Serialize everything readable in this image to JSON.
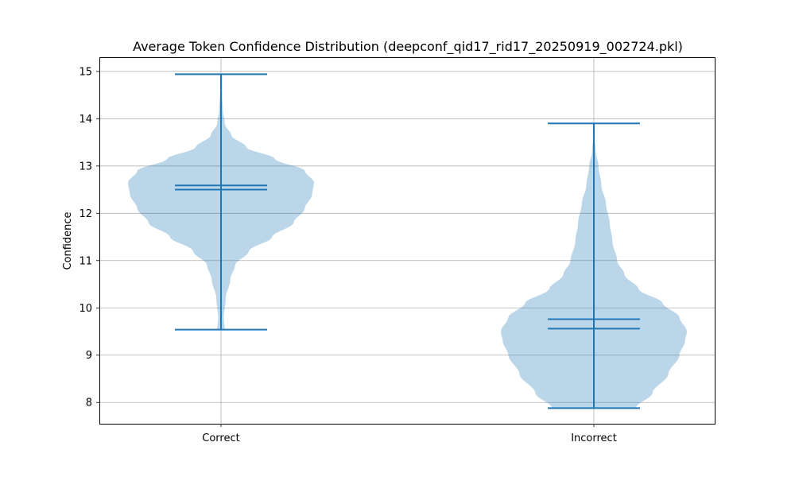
{
  "chart_data": {
    "type": "violin",
    "title": "Average Token Confidence Distribution (deepconf_qid17_rid17_20250919_002724.pkl)",
    "xlabel": "",
    "ylabel": "Confidence",
    "categories": [
      "Correct",
      "Incorrect"
    ],
    "ylim": [
      7.55,
      15.3
    ],
    "yticks": [
      8,
      9,
      10,
      11,
      12,
      13,
      14,
      15
    ],
    "grid": true,
    "colors": {
      "body": "#1f77b4",
      "body_alpha": 0.3,
      "lines": "#1f77b4"
    },
    "series": [
      {
        "category": "Correct",
        "min": 9.54,
        "max": 14.94,
        "mean": 12.59,
        "median": 12.5,
        "density_profile": [
          [
            9.54,
            0.04
          ],
          [
            9.8,
            0.03
          ],
          [
            10.2,
            0.05
          ],
          [
            10.6,
            0.1
          ],
          [
            10.9,
            0.15
          ],
          [
            11.2,
            0.3
          ],
          [
            11.5,
            0.55
          ],
          [
            11.8,
            0.78
          ],
          [
            12.1,
            0.9
          ],
          [
            12.4,
            0.98
          ],
          [
            12.65,
            1.0
          ],
          [
            12.9,
            0.9
          ],
          [
            13.15,
            0.58
          ],
          [
            13.4,
            0.27
          ],
          [
            13.65,
            0.11
          ],
          [
            13.9,
            0.04
          ],
          [
            14.2,
            0.02
          ],
          [
            14.6,
            0.01
          ],
          [
            14.94,
            0.01
          ]
        ]
      },
      {
        "category": "Incorrect",
        "min": 7.88,
        "max": 13.9,
        "mean": 9.76,
        "median": 9.56,
        "density_profile": [
          [
            7.88,
            0.45
          ],
          [
            8.2,
            0.63
          ],
          [
            8.6,
            0.8
          ],
          [
            9.0,
            0.92
          ],
          [
            9.3,
            0.98
          ],
          [
            9.5,
            1.0
          ],
          [
            9.8,
            0.92
          ],
          [
            10.1,
            0.74
          ],
          [
            10.4,
            0.48
          ],
          [
            10.7,
            0.33
          ],
          [
            11.0,
            0.25
          ],
          [
            11.4,
            0.2
          ],
          [
            11.8,
            0.17
          ],
          [
            12.2,
            0.13
          ],
          [
            12.6,
            0.08
          ],
          [
            13.0,
            0.05
          ],
          [
            13.3,
            0.02
          ],
          [
            13.6,
            0.01
          ],
          [
            13.9,
            0.01
          ]
        ]
      }
    ]
  }
}
